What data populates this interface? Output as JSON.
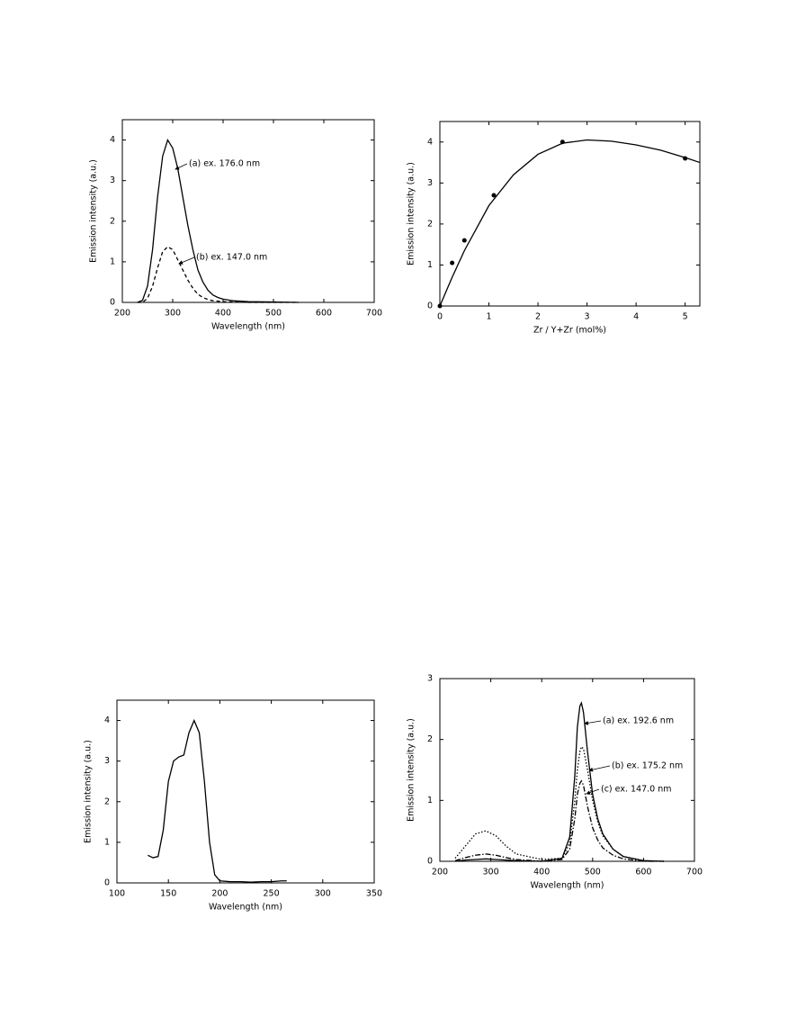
{
  "chart_data": [
    {
      "type": "line",
      "xlabel": "Wavelength (nm)",
      "ylabel": "Emission intensity (a.u.)",
      "xlim": [
        200,
        700
      ],
      "ylim": [
        0,
        4.5
      ],
      "xticks": [
        200,
        300,
        400,
        500,
        600,
        700
      ],
      "yticks": [
        0,
        1,
        2,
        3,
        4
      ],
      "x": [
        230,
        240,
        250,
        260,
        270,
        280,
        290,
        300,
        310,
        320,
        330,
        340,
        350,
        360,
        370,
        380,
        390,
        400,
        420,
        450,
        500,
        550
      ],
      "series": [
        {
          "color": "#000000",
          "dash": "solid",
          "values": [
            0,
            0.05,
            0.4,
            1.3,
            2.6,
            3.6,
            4.0,
            3.8,
            3.3,
            2.6,
            1.9,
            1.3,
            0.8,
            0.5,
            0.3,
            0.18,
            0.12,
            0.08,
            0.04,
            0.02,
            0.01,
            0
          ]
        },
        {
          "color": "#000000",
          "dash": "dashed",
          "values": [
            0,
            0,
            0.1,
            0.4,
            0.85,
            1.25,
            1.37,
            1.3,
            1.05,
            0.8,
            0.55,
            0.35,
            0.2,
            0.12,
            0.07,
            0.04,
            0.03,
            0.02,
            0.01,
            0,
            0,
            0
          ]
        }
      ],
      "annotations": [
        "(a) ex. 176.0 nm",
        "(b) ex. 147.0 nm"
      ]
    },
    {
      "type": "scatter",
      "xlabel": "Zr / Y+Zr (mol%)",
      "ylabel": "Emission intensity (a.u.)",
      "xlim": [
        0,
        5.3
      ],
      "ylim": [
        0,
        4.5
      ],
      "xticks": [
        0,
        1,
        2,
        3,
        4,
        5
      ],
      "yticks": [
        0,
        1,
        2,
        3,
        4
      ],
      "series": [
        {
          "mode": "markers",
          "color": "#000000",
          "x": [
            0,
            0.25,
            0.5,
            1.1,
            2.5,
            5
          ],
          "values": [
            0,
            1.05,
            1.6,
            2.7,
            4.0,
            3.6
          ]
        },
        {
          "mode": "line",
          "color": "#000000",
          "dash": "solid",
          "x": [
            0,
            0.25,
            0.5,
            1,
            1.5,
            2,
            2.5,
            3,
            3.5,
            4,
            4.5,
            5,
            5.3
          ],
          "values": [
            0,
            0.7,
            1.35,
            2.45,
            3.2,
            3.7,
            3.97,
            4.05,
            4.02,
            3.93,
            3.8,
            3.62,
            3.5
          ]
        }
      ]
    },
    {
      "type": "line",
      "xlabel": "Wavelength (nm)",
      "ylabel": "Emission intensity (a.u.)",
      "xlim": [
        100,
        350
      ],
      "ylim": [
        0,
        4.5
      ],
      "xticks": [
        100,
        150,
        200,
        250,
        300,
        350
      ],
      "yticks": [
        0,
        1,
        2,
        3,
        4
      ],
      "x": [
        130,
        135,
        140,
        145,
        150,
        155,
        160,
        165,
        170,
        175,
        180,
        185,
        190,
        195,
        200,
        210,
        220,
        230,
        240,
        250,
        260,
        265
      ],
      "series": [
        {
          "color": "#000000",
          "dash": "solid",
          "values": [
            0.68,
            0.62,
            0.65,
            1.3,
            2.5,
            3.0,
            3.1,
            3.15,
            3.7,
            4.0,
            3.7,
            2.5,
            1.0,
            0.2,
            0.05,
            0.03,
            0.03,
            0.02,
            0.03,
            0.03,
            0.05,
            0.05
          ]
        }
      ]
    },
    {
      "type": "line",
      "xlabel": "Wavelength (nm)",
      "ylabel": "Emission intensity (a.u.)",
      "xlim": [
        200,
        700
      ],
      "ylim": [
        0,
        3
      ],
      "xticks": [
        200,
        300,
        400,
        500,
        600,
        700
      ],
      "yticks": [
        0,
        1,
        2,
        3
      ],
      "x": [
        230,
        250,
        270,
        290,
        310,
        330,
        350,
        400,
        440,
        455,
        465,
        470,
        475,
        478,
        482,
        490,
        500,
        510,
        520,
        540,
        560,
        600,
        640
      ],
      "series": [
        {
          "color": "#000000",
          "dash": "solid",
          "values": [
            0,
            0.02,
            0.03,
            0.04,
            0.03,
            0.02,
            0.01,
            0,
            0.05,
            0.4,
            1.4,
            2.2,
            2.55,
            2.6,
            2.45,
            1.8,
            1.1,
            0.7,
            0.45,
            0.2,
            0.08,
            0.01,
            0
          ]
        },
        {
          "color": "#000000",
          "dash": "dotted",
          "values": [
            0.05,
            0.25,
            0.45,
            0.5,
            0.42,
            0.25,
            0.12,
            0.03,
            0.05,
            0.3,
            1.0,
            1.5,
            1.8,
            1.88,
            1.85,
            1.5,
            1.0,
            0.65,
            0.42,
            0.2,
            0.08,
            0.01,
            0
          ]
        },
        {
          "color": "#000000",
          "dash": "dashdot",
          "values": [
            0.01,
            0.06,
            0.1,
            0.12,
            0.1,
            0.06,
            0.03,
            0,
            0.03,
            0.2,
            0.7,
            1.1,
            1.28,
            1.32,
            1.25,
            0.9,
            0.55,
            0.35,
            0.22,
            0.1,
            0.04,
            0,
            0
          ]
        }
      ],
      "annotations": [
        "(a) ex. 192.6 nm",
        "(b) ex. 175.2 nm",
        "(c) ex. 147.0 nm"
      ]
    }
  ]
}
